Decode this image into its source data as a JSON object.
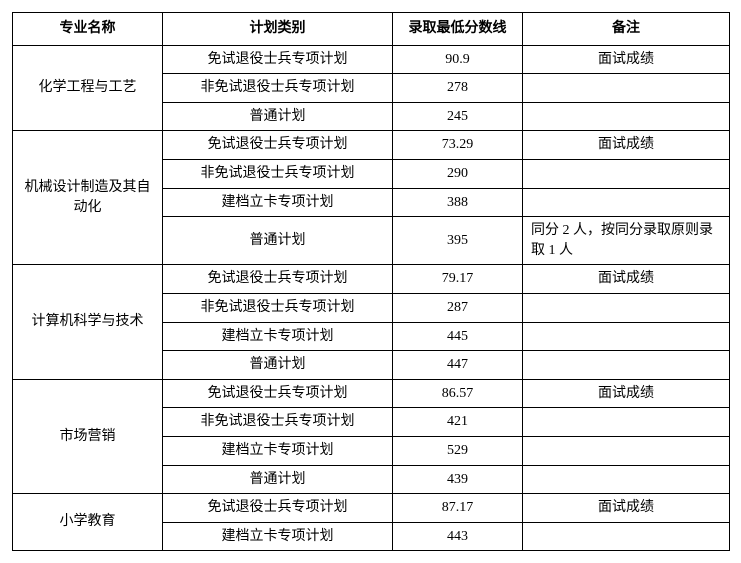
{
  "headers": {
    "major": "专业名称",
    "plan": "计划类别",
    "score": "录取最低分数线",
    "note": "备注"
  },
  "majors": [
    {
      "name": "化学工程与工艺",
      "rows": [
        {
          "plan": "免试退役士兵专项计划",
          "score": "90.9",
          "note": "面试成绩"
        },
        {
          "plan": "非免试退役士兵专项计划",
          "score": "278",
          "note": ""
        },
        {
          "plan": "普通计划",
          "score": "245",
          "note": ""
        }
      ]
    },
    {
      "name": "机械设计制造及其自动化",
      "rows": [
        {
          "plan": "免试退役士兵专项计划",
          "score": "73.29",
          "note": "面试成绩"
        },
        {
          "plan": "非免试退役士兵专项计划",
          "score": "290",
          "note": ""
        },
        {
          "plan": "建档立卡专项计划",
          "score": "388",
          "note": ""
        },
        {
          "plan": "普通计划",
          "score": "395",
          "note": "同分 2 人，按同分录取原则录取 1 人",
          "noteLeft": true
        }
      ]
    },
    {
      "name": "计算机科学与技术",
      "rows": [
        {
          "plan": "免试退役士兵专项计划",
          "score": "79.17",
          "note": "面试成绩"
        },
        {
          "plan": "非免试退役士兵专项计划",
          "score": "287",
          "note": ""
        },
        {
          "plan": "建档立卡专项计划",
          "score": "445",
          "note": ""
        },
        {
          "plan": "普通计划",
          "score": "447",
          "note": ""
        }
      ]
    },
    {
      "name": "市场营销",
      "rows": [
        {
          "plan": "免试退役士兵专项计划",
          "score": "86.57",
          "note": "面试成绩"
        },
        {
          "plan": "非免试退役士兵专项计划",
          "score": "421",
          "note": ""
        },
        {
          "plan": "建档立卡专项计划",
          "score": "529",
          "note": ""
        },
        {
          "plan": "普通计划",
          "score": "439",
          "note": ""
        }
      ]
    },
    {
      "name": "小学教育",
      "rows": [
        {
          "plan": "免试退役士兵专项计划",
          "score": "87.17",
          "note": "面试成绩"
        },
        {
          "plan": "建档立卡专项计划",
          "score": "443",
          "note": ""
        }
      ]
    }
  ]
}
